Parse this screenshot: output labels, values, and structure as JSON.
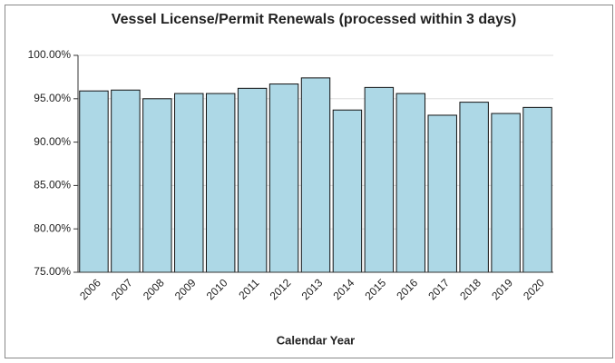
{
  "chart_data": {
    "type": "bar",
    "title": "Vessel License/Permit Renewals (processed within 3 days)",
    "x_label": "Calendar Year",
    "categories": [
      "2006",
      "2007",
      "2008",
      "2009",
      "2010",
      "2011",
      "2012",
      "2013",
      "2014",
      "2015",
      "2016",
      "2017",
      "2018",
      "2019",
      "2020"
    ],
    "values": [
      95.9,
      96.0,
      95.0,
      95.6,
      95.6,
      96.2,
      96.7,
      97.4,
      93.7,
      96.3,
      95.6,
      93.1,
      94.6,
      93.3,
      94.0
    ],
    "color": "#add8e6",
    "ylim": [
      75,
      100
    ],
    "yticks": [
      {
        "value": 75,
        "label": "75.00%"
      },
      {
        "value": 80,
        "label": "80.00%"
      },
      {
        "value": 85,
        "label": "85.00%"
      },
      {
        "value": 90,
        "label": "90.00%"
      },
      {
        "value": 95,
        "label": "95.00%"
      },
      {
        "value": 100,
        "label": "100.00%"
      }
    ],
    "grid": true
  }
}
